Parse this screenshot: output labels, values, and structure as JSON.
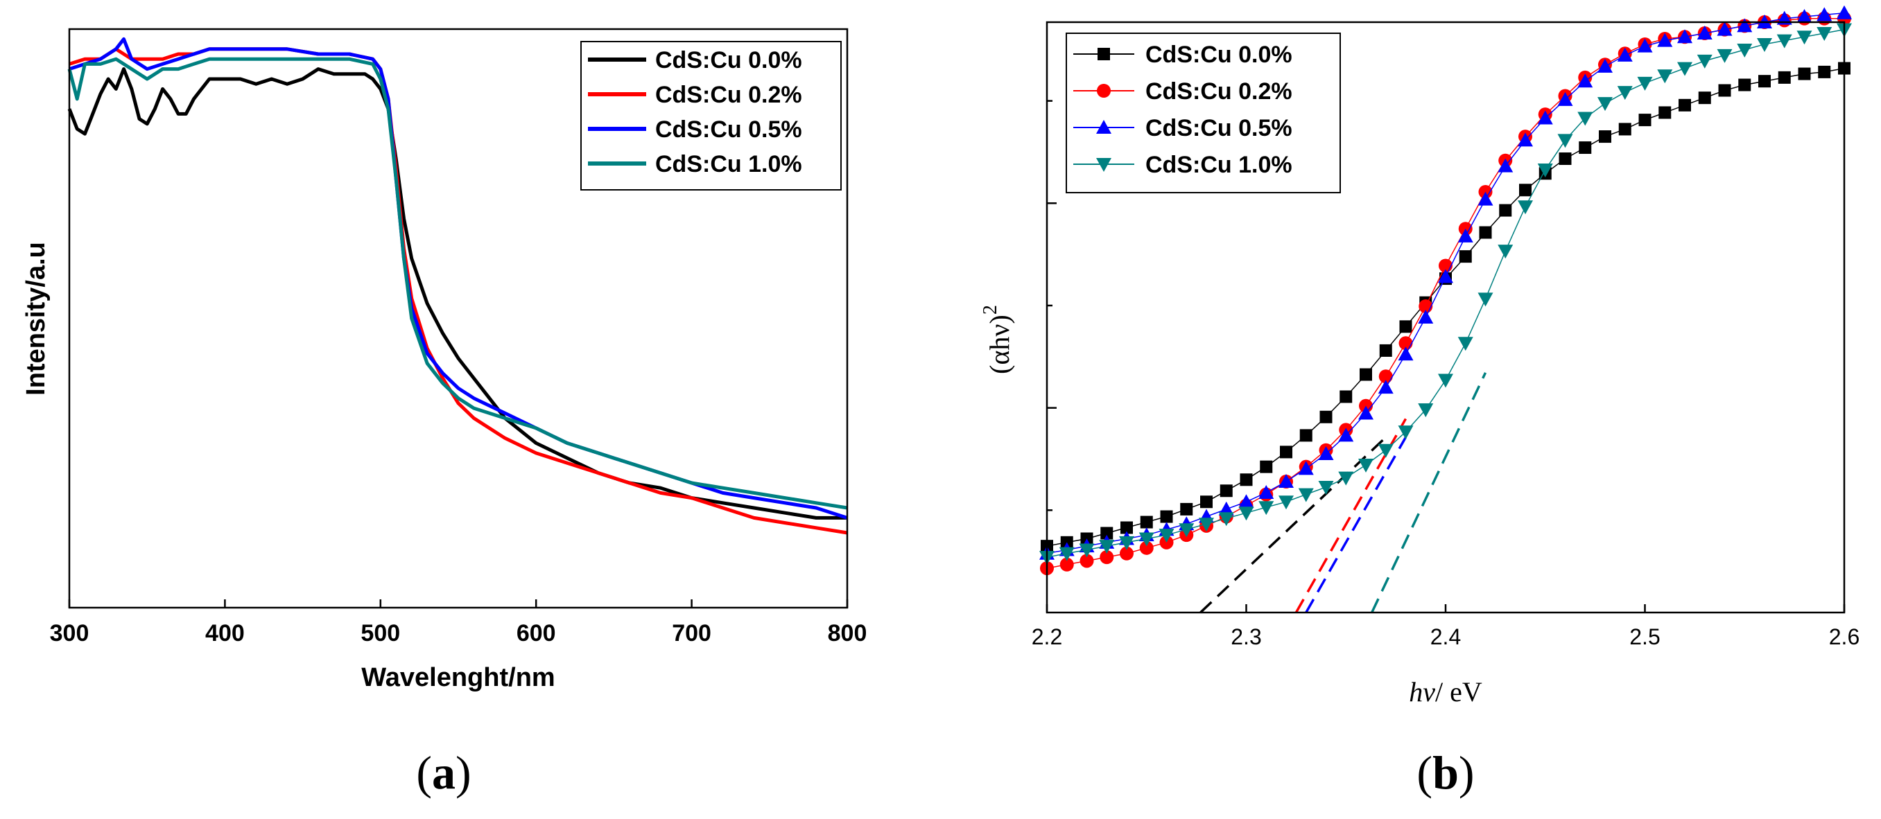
{
  "chart_data": [
    {
      "panel_label": "(a)",
      "type": "line",
      "title": "",
      "xlabel": "Wavelenght/nm",
      "ylabel": "Intensity/a.u",
      "xlim": [
        300,
        800
      ],
      "ylim": [
        0,
        1.16
      ],
      "xticks": [
        300,
        400,
        500,
        600,
        700,
        800
      ],
      "xtick_labels": [
        "300",
        "400",
        "500",
        "600",
        "700",
        "800"
      ],
      "legend_position": "top-right",
      "series": [
        {
          "name": "CdS:Cu 0.0%",
          "color": "#000000",
          "x": [
            300,
            305,
            310,
            315,
            320,
            325,
            330,
            335,
            340,
            345,
            350,
            355,
            360,
            365,
            370,
            375,
            380,
            385,
            390,
            400,
            410,
            420,
            430,
            440,
            450,
            460,
            470,
            480,
            490,
            495,
            500,
            505,
            510,
            515,
            520,
            530,
            540,
            550,
            560,
            570,
            580,
            600,
            620,
            640,
            660,
            680,
            700,
            720,
            740,
            760,
            780,
            800
          ],
          "y": [
            1.0,
            0.96,
            0.95,
            0.99,
            1.03,
            1.06,
            1.04,
            1.08,
            1.04,
            0.98,
            0.97,
            1.0,
            1.04,
            1.02,
            0.99,
            0.99,
            1.02,
            1.04,
            1.06,
            1.06,
            1.06,
            1.05,
            1.06,
            1.05,
            1.06,
            1.08,
            1.07,
            1.07,
            1.07,
            1.06,
            1.04,
            1.0,
            0.9,
            0.78,
            0.7,
            0.61,
            0.55,
            0.5,
            0.46,
            0.42,
            0.38,
            0.33,
            0.3,
            0.27,
            0.25,
            0.24,
            0.22,
            0.21,
            0.2,
            0.19,
            0.18,
            0.18
          ]
        },
        {
          "name": "CdS:Cu 0.2%",
          "color": "#ff0000",
          "x": [
            300,
            310,
            320,
            330,
            340,
            350,
            360,
            370,
            380,
            390,
            400,
            420,
            440,
            460,
            480,
            495,
            500,
            505,
            510,
            515,
            520,
            530,
            540,
            550,
            560,
            580,
            600,
            620,
            640,
            660,
            680,
            700,
            720,
            740,
            760,
            780,
            800
          ],
          "y": [
            1.09,
            1.1,
            1.1,
            1.12,
            1.1,
            1.1,
            1.1,
            1.11,
            1.11,
            1.12,
            1.12,
            1.12,
            1.12,
            1.11,
            1.11,
            1.1,
            1.08,
            1.02,
            0.88,
            0.72,
            0.62,
            0.52,
            0.46,
            0.41,
            0.38,
            0.34,
            0.31,
            0.29,
            0.27,
            0.25,
            0.23,
            0.22,
            0.2,
            0.18,
            0.17,
            0.16,
            0.15
          ]
        },
        {
          "name": "CdS:Cu 0.5%",
          "color": "#0000ff",
          "x": [
            300,
            310,
            320,
            330,
            335,
            340,
            350,
            360,
            370,
            380,
            390,
            400,
            420,
            440,
            460,
            480,
            495,
            500,
            505,
            510,
            515,
            520,
            530,
            540,
            550,
            560,
            580,
            600,
            620,
            640,
            660,
            680,
            700,
            720,
            740,
            760,
            780,
            800
          ],
          "y": [
            1.08,
            1.09,
            1.1,
            1.12,
            1.14,
            1.1,
            1.08,
            1.09,
            1.1,
            1.11,
            1.12,
            1.12,
            1.12,
            1.12,
            1.11,
            1.11,
            1.1,
            1.08,
            1.02,
            0.86,
            0.7,
            0.6,
            0.51,
            0.47,
            0.44,
            0.42,
            0.39,
            0.36,
            0.33,
            0.31,
            0.29,
            0.27,
            0.25,
            0.23,
            0.22,
            0.21,
            0.2,
            0.18
          ]
        },
        {
          "name": "CdS:Cu 1.0%",
          "color": "#008080",
          "x": [
            300,
            305,
            310,
            320,
            330,
            340,
            350,
            360,
            370,
            380,
            390,
            400,
            420,
            440,
            460,
            480,
            495,
            500,
            505,
            510,
            515,
            520,
            530,
            540,
            550,
            560,
            580,
            600,
            620,
            640,
            660,
            680,
            700,
            720,
            740,
            760,
            780,
            800
          ],
          "y": [
            1.08,
            1.02,
            1.09,
            1.09,
            1.1,
            1.08,
            1.06,
            1.08,
            1.08,
            1.09,
            1.1,
            1.1,
            1.1,
            1.1,
            1.1,
            1.1,
            1.09,
            1.06,
            1.0,
            0.86,
            0.7,
            0.58,
            0.49,
            0.45,
            0.42,
            0.4,
            0.38,
            0.36,
            0.33,
            0.31,
            0.29,
            0.27,
            0.25,
            0.24,
            0.23,
            0.22,
            0.21,
            0.2
          ]
        }
      ]
    },
    {
      "panel_label": "(b)",
      "type": "scatter",
      "title": "",
      "xlabel_main": "hν",
      "xlabel_unit": "/ eV",
      "ylabel_main": "(αhν)",
      "ylabel_sup": "2",
      "xlim": [
        2.2,
        2.6
      ],
      "ylim": [
        0,
        3.2
      ],
      "xticks": [
        2.2,
        2.3,
        2.4,
        2.5,
        2.6
      ],
      "xtick_labels": [
        "2.2",
        "2.3",
        "2.4",
        "2.5",
        "2.6"
      ],
      "legend_position": "top-left",
      "series": [
        {
          "name": "CdS:Cu 0.0%",
          "color": "#000000",
          "marker": "square",
          "x": [
            2.2,
            2.21,
            2.22,
            2.23,
            2.24,
            2.25,
            2.26,
            2.27,
            2.28,
            2.29,
            2.3,
            2.31,
            2.32,
            2.33,
            2.34,
            2.35,
            2.36,
            2.37,
            2.38,
            2.39,
            2.4,
            2.41,
            2.42,
            2.43,
            2.44,
            2.45,
            2.46,
            2.47,
            2.48,
            2.49,
            2.5,
            2.51,
            2.52,
            2.53,
            2.54,
            2.55,
            2.56,
            2.57,
            2.58,
            2.59,
            2.6
          ],
          "y": [
            0.36,
            0.38,
            0.4,
            0.43,
            0.46,
            0.49,
            0.52,
            0.56,
            0.6,
            0.66,
            0.72,
            0.79,
            0.87,
            0.96,
            1.06,
            1.17,
            1.29,
            1.42,
            1.55,
            1.68,
            1.81,
            1.93,
            2.06,
            2.18,
            2.29,
            2.38,
            2.46,
            2.52,
            2.58,
            2.62,
            2.67,
            2.71,
            2.75,
            2.79,
            2.83,
            2.86,
            2.88,
            2.9,
            2.92,
            2.93,
            2.95
          ]
        },
        {
          "name": "CdS:Cu 0.2%",
          "color": "#ff0000",
          "marker": "circle",
          "x": [
            2.2,
            2.21,
            2.22,
            2.23,
            2.24,
            2.25,
            2.26,
            2.27,
            2.28,
            2.29,
            2.3,
            2.31,
            2.32,
            2.33,
            2.34,
            2.35,
            2.36,
            2.37,
            2.38,
            2.39,
            2.4,
            2.41,
            2.42,
            2.43,
            2.44,
            2.45,
            2.46,
            2.47,
            2.48,
            2.49,
            2.5,
            2.51,
            2.52,
            2.53,
            2.54,
            2.55,
            2.56,
            2.57,
            2.58,
            2.59,
            2.6
          ],
          "y": [
            0.24,
            0.26,
            0.28,
            0.3,
            0.32,
            0.35,
            0.38,
            0.42,
            0.47,
            0.52,
            0.58,
            0.64,
            0.71,
            0.79,
            0.88,
            0.99,
            1.12,
            1.28,
            1.46,
            1.66,
            1.88,
            2.08,
            2.28,
            2.45,
            2.58,
            2.7,
            2.8,
            2.9,
            2.97,
            3.03,
            3.08,
            3.11,
            3.12,
            3.14,
            3.16,
            3.18,
            3.2,
            3.21,
            3.22,
            3.22,
            3.22
          ]
        },
        {
          "name": "CdS:Cu 0.5%",
          "color": "#0000ff",
          "marker": "triangle-up",
          "x": [
            2.2,
            2.21,
            2.22,
            2.23,
            2.24,
            2.25,
            2.26,
            2.27,
            2.28,
            2.29,
            2.3,
            2.31,
            2.32,
            2.33,
            2.34,
            2.35,
            2.36,
            2.37,
            2.38,
            2.39,
            2.4,
            2.41,
            2.42,
            2.43,
            2.44,
            2.45,
            2.46,
            2.47,
            2.48,
            2.49,
            2.5,
            2.51,
            2.52,
            2.53,
            2.54,
            2.55,
            2.56,
            2.57,
            2.58,
            2.59,
            2.6
          ],
          "y": [
            0.32,
            0.34,
            0.36,
            0.38,
            0.4,
            0.42,
            0.45,
            0.48,
            0.52,
            0.56,
            0.6,
            0.65,
            0.71,
            0.78,
            0.86,
            0.96,
            1.08,
            1.22,
            1.4,
            1.6,
            1.82,
            2.04,
            2.24,
            2.42,
            2.56,
            2.68,
            2.78,
            2.88,
            2.96,
            3.02,
            3.07,
            3.1,
            3.12,
            3.14,
            3.16,
            3.18,
            3.2,
            3.22,
            3.23,
            3.24,
            3.25
          ]
        },
        {
          "name": "CdS:Cu 1.0%",
          "color": "#008080",
          "marker": "triangle-down",
          "x": [
            2.2,
            2.21,
            2.22,
            2.23,
            2.24,
            2.25,
            2.26,
            2.27,
            2.28,
            2.29,
            2.3,
            2.31,
            2.32,
            2.33,
            2.34,
            2.35,
            2.36,
            2.37,
            2.38,
            2.39,
            2.4,
            2.41,
            2.42,
            2.43,
            2.44,
            2.45,
            2.46,
            2.47,
            2.48,
            2.49,
            2.5,
            2.51,
            2.52,
            2.53,
            2.54,
            2.55,
            2.56,
            2.57,
            2.58,
            2.59,
            2.6
          ],
          "y": [
            0.3,
            0.32,
            0.34,
            0.36,
            0.38,
            0.4,
            0.42,
            0.45,
            0.48,
            0.51,
            0.54,
            0.57,
            0.6,
            0.64,
            0.68,
            0.73,
            0.8,
            0.88,
            0.98,
            1.1,
            1.26,
            1.46,
            1.7,
            1.96,
            2.2,
            2.4,
            2.56,
            2.68,
            2.76,
            2.82,
            2.87,
            2.91,
            2.95,
            2.99,
            3.02,
            3.05,
            3.08,
            3.1,
            3.12,
            3.14,
            3.16
          ]
        }
      ],
      "fit_lines": [
        {
          "series": "CdS:Cu 0.0%",
          "color": "#000000",
          "x": [
            2.277,
            2.37
          ],
          "y": [
            0.0,
            0.95
          ]
        },
        {
          "series": "CdS:Cu 0.2%",
          "color": "#ff0000",
          "x": [
            2.325,
            2.38
          ],
          "y": [
            0.0,
            1.05
          ]
        },
        {
          "series": "CdS:Cu 0.5%",
          "color": "#0000ff",
          "x": [
            2.33,
            2.38
          ],
          "y": [
            0.0,
            0.95
          ]
        },
        {
          "series": "CdS:Cu 1.0%",
          "color": "#008080",
          "x": [
            2.363,
            2.42
          ],
          "y": [
            0.0,
            1.3
          ]
        }
      ]
    }
  ]
}
